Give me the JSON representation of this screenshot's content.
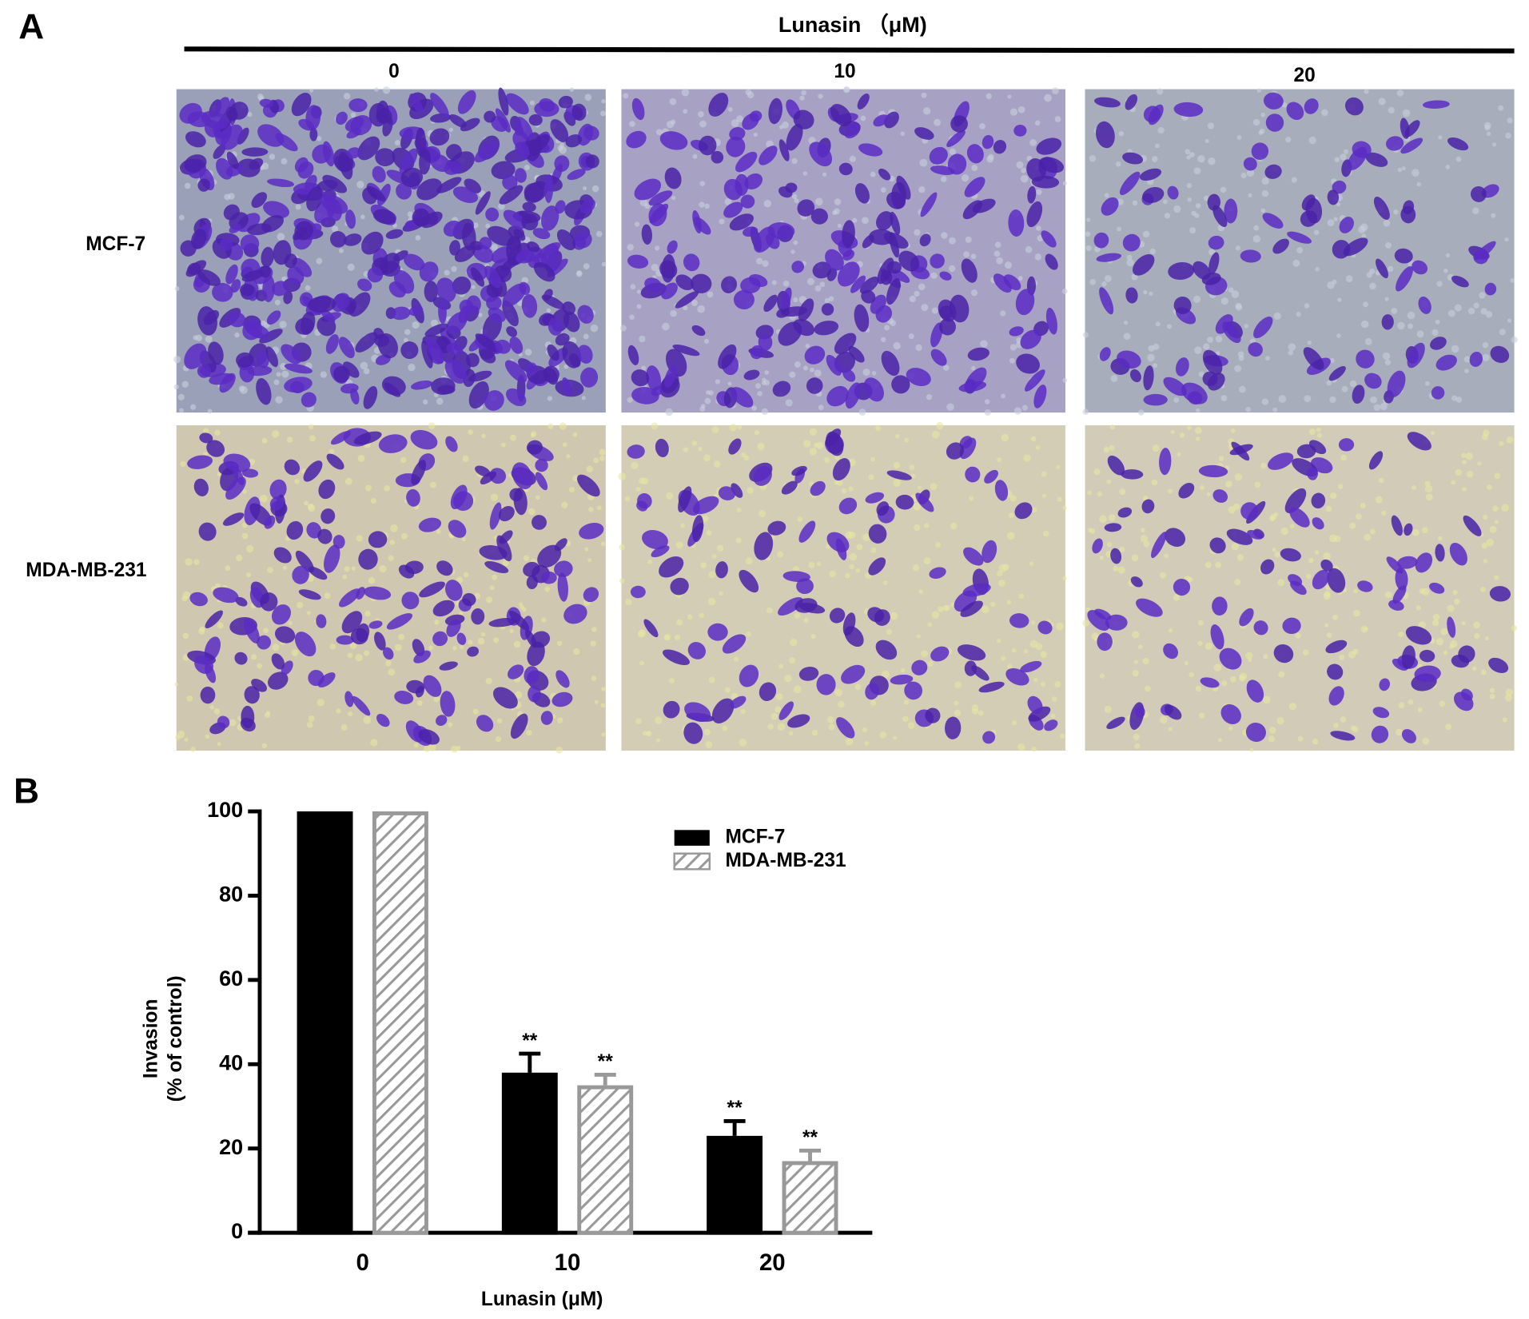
{
  "panel_a": {
    "label": "A",
    "header": "Lunasin （μM)",
    "columns": [
      "0",
      "10",
      "20"
    ],
    "rows": [
      "MCF-7",
      "MDA-MB-231"
    ]
  },
  "panel_b_label": "B",
  "chart_data": {
    "type": "bar",
    "categories": [
      "0",
      "10",
      "20"
    ],
    "x_label": "Lunasin (μM)",
    "y_label": [
      "Invasion",
      "(% of control)"
    ],
    "ylim": [
      0,
      100
    ],
    "yticks": [
      0,
      20,
      40,
      60,
      80,
      100
    ],
    "series": [
      {
        "name": "MCF-7",
        "color": "#000000",
        "hatch": false,
        "values": [
          100,
          38,
          23
        ],
        "errors": [
          0,
          4.5,
          3.5
        ],
        "significance": [
          null,
          "**",
          "**"
        ]
      },
      {
        "name": "MDA-MB-231",
        "color": "#999999",
        "hatch": true,
        "values": [
          100,
          35,
          17
        ],
        "errors": [
          0,
          2.5,
          2.5
        ],
        "significance": [
          null,
          "**",
          "**"
        ]
      }
    ]
  }
}
